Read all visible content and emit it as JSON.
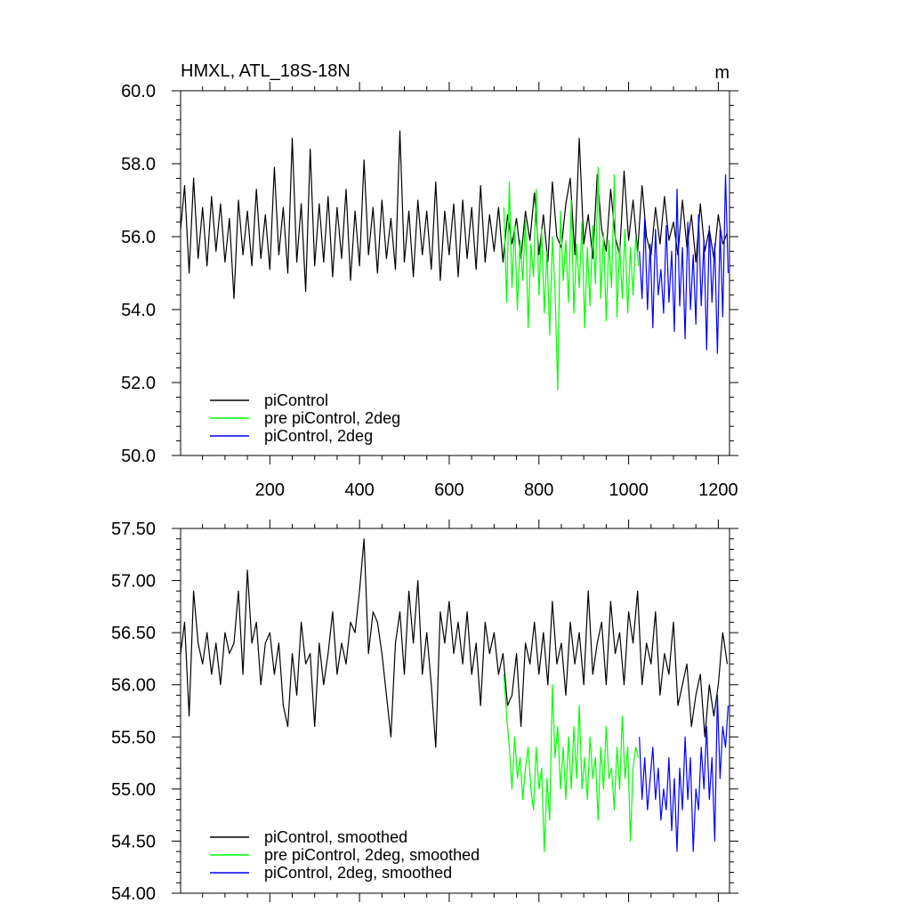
{
  "chart_data": [
    {
      "type": "line",
      "title": "HMXL, ATL_18S-18N",
      "units": "m",
      "xlim": [
        1,
        1225
      ],
      "ylim": [
        50,
        60
      ],
      "xticks": [
        200,
        400,
        600,
        800,
        1000,
        1200
      ],
      "xtick_labels": [
        "200",
        "400",
        "600",
        "800",
        "1000",
        "1200"
      ],
      "yticks": [
        50,
        52,
        54,
        56,
        58,
        60
      ],
      "ytick_labels": [
        "50.0",
        "52.0",
        "54.0",
        "56.0",
        "58.0",
        "60.0"
      ],
      "legend_position": "bottom-left",
      "series": [
        {
          "name": "piControl",
          "color": "#000000",
          "x": [
            1,
            10,
            20,
            30,
            40,
            50,
            60,
            70,
            80,
            90,
            100,
            110,
            120,
            130,
            140,
            150,
            160,
            170,
            180,
            190,
            200,
            210,
            220,
            230,
            240,
            250,
            260,
            270,
            280,
            290,
            300,
            310,
            320,
            330,
            340,
            350,
            360,
            370,
            380,
            390,
            400,
            410,
            420,
            430,
            440,
            450,
            460,
            470,
            480,
            490,
            500,
            510,
            520,
            530,
            540,
            550,
            560,
            570,
            580,
            590,
            600,
            610,
            620,
            630,
            640,
            650,
            660,
            670,
            680,
            690,
            700,
            710,
            720,
            730,
            740,
            750,
            760,
            770,
            780,
            790,
            800,
            810,
            820,
            830,
            840,
            850,
            860,
            870,
            880,
            890,
            900,
            910,
            920,
            930,
            940,
            950,
            960,
            970,
            980,
            990,
            1000,
            1010,
            1020,
            1030,
            1040,
            1050,
            1060,
            1070,
            1080,
            1090,
            1100,
            1110,
            1120,
            1130,
            1140,
            1150,
            1160,
            1170,
            1180,
            1190,
            1200,
            1210,
            1220
          ],
          "y": [
            56.2,
            57.4,
            55.0,
            57.6,
            55.4,
            56.8,
            55.2,
            57.1,
            55.6,
            56.9,
            55.3,
            56.5,
            54.3,
            57.0,
            55.5,
            56.7,
            55.2,
            57.3,
            55.4,
            56.6,
            55.1,
            57.9,
            55.5,
            56.8,
            55.0,
            58.7,
            55.3,
            56.9,
            54.5,
            58.4,
            55.2,
            56.9,
            55.3,
            57.1,
            54.9,
            56.8,
            55.4,
            57.3,
            54.8,
            56.7,
            55.2,
            58.1,
            55.5,
            56.8,
            55.0,
            57.0,
            55.4,
            56.5,
            55.1,
            58.9,
            55.3,
            56.7,
            54.9,
            57.0,
            55.5,
            56.7,
            55.1,
            57.5,
            54.8,
            56.7,
            55.5,
            56.9,
            54.9,
            57.0,
            55.4,
            56.8,
            55.1,
            57.4,
            55.3,
            56.6,
            55.6,
            56.8,
            55.3,
            56.6,
            55.8,
            56.5,
            55.4,
            56.7,
            55.9,
            57.2,
            55.5,
            56.6,
            55.3,
            57.5,
            56.0,
            55.7,
            56.9,
            57.6,
            55.5,
            58.7,
            55.8,
            56.6,
            55.4,
            57.7,
            56.2,
            55.6,
            57.3,
            56.0,
            55.5,
            57.8,
            55.9,
            57.0,
            55.6,
            57.4,
            56.0,
            55.5,
            56.8,
            55.8,
            57.1,
            55.9,
            56.4,
            55.5,
            57.0,
            55.7,
            56.6,
            55.3,
            56.9,
            55.6,
            56.2,
            55.4,
            56.6,
            55.8,
            56.1
          ]
        },
        {
          "name": "pre piControl, 2deg",
          "color": "#00ff00",
          "x": [
            722,
            728,
            734,
            740,
            746,
            752,
            758,
            764,
            770,
            776,
            782,
            788,
            794,
            800,
            806,
            812,
            818,
            824,
            830,
            836,
            842,
            848,
            854,
            860,
            866,
            872,
            878,
            884,
            890,
            896,
            902,
            908,
            914,
            920,
            926,
            932,
            938,
            944,
            950,
            956,
            962,
            968,
            974,
            980,
            986,
            992,
            998,
            1004,
            1010,
            1016,
            1022
          ],
          "y": [
            56.8,
            54.2,
            57.5,
            54.6,
            56.3,
            54.0,
            55.9,
            54.8,
            56.5,
            53.5,
            55.8,
            54.9,
            57.3,
            54.4,
            56.2,
            53.9,
            55.6,
            53.3,
            56.0,
            54.5,
            51.8,
            56.7,
            54.8,
            55.9,
            54.2,
            57.0,
            53.9,
            55.8,
            54.6,
            56.4,
            53.5,
            55.7,
            54.1,
            56.3,
            54.7,
            57.9,
            54.3,
            56.1,
            53.7,
            55.9,
            54.6,
            57.7,
            53.8,
            55.8,
            54.3,
            56.2,
            53.9,
            55.7,
            54.4,
            56.0,
            55.2
          ]
        },
        {
          "name": "piControl, 2deg",
          "color": "#0000ff",
          "x": [
            1024,
            1030,
            1036,
            1042,
            1048,
            1054,
            1060,
            1066,
            1072,
            1078,
            1084,
            1090,
            1096,
            1102,
            1108,
            1114,
            1120,
            1126,
            1132,
            1138,
            1144,
            1150,
            1156,
            1162,
            1168,
            1174,
            1180,
            1186,
            1192,
            1198,
            1204,
            1210,
            1216,
            1222
          ],
          "y": [
            55.6,
            54.3,
            56.5,
            54.0,
            55.8,
            53.5,
            56.2,
            54.4,
            55.1,
            53.9,
            56.3,
            54.2,
            55.6,
            53.4,
            57.3,
            54.1,
            55.7,
            53.2,
            56.4,
            54.0,
            55.5,
            53.6,
            56.6,
            54.1,
            55.9,
            52.9,
            56.3,
            54.2,
            55.8,
            52.8,
            56.2,
            53.8,
            57.7,
            55.0
          ]
        }
      ]
    },
    {
      "type": "line",
      "xlim": [
        1,
        1225
      ],
      "ylim": [
        54.0,
        57.5
      ],
      "xticks": [
        200,
        400,
        600,
        800,
        1000,
        1200
      ],
      "yticks": [
        54.0,
        54.5,
        55.0,
        55.5,
        56.0,
        56.5,
        57.0,
        57.5
      ],
      "ytick_labels": [
        "54.00",
        "54.50",
        "55.00",
        "55.50",
        "56.00",
        "56.50",
        "57.00",
        "57.50"
      ],
      "legend_position": "bottom-left",
      "series": [
        {
          "name": "piControl, smoothed",
          "color": "#000000",
          "x": [
            1,
            10,
            20,
            30,
            40,
            50,
            60,
            70,
            80,
            90,
            100,
            110,
            120,
            130,
            140,
            150,
            160,
            170,
            180,
            190,
            200,
            210,
            220,
            230,
            240,
            250,
            260,
            270,
            280,
            290,
            300,
            310,
            320,
            330,
            340,
            350,
            360,
            370,
            380,
            390,
            400,
            410,
            420,
            430,
            440,
            450,
            460,
            470,
            480,
            490,
            500,
            510,
            520,
            530,
            540,
            550,
            560,
            570,
            580,
            590,
            600,
            610,
            620,
            630,
            640,
            650,
            660,
            670,
            680,
            690,
            700,
            710,
            720,
            730,
            740,
            750,
            760,
            770,
            780,
            790,
            800,
            810,
            820,
            830,
            840,
            850,
            860,
            870,
            880,
            890,
            900,
            910,
            920,
            930,
            940,
            950,
            960,
            970,
            980,
            990,
            1000,
            1010,
            1020,
            1030,
            1040,
            1050,
            1060,
            1070,
            1080,
            1090,
            1100,
            1110,
            1120,
            1130,
            1140,
            1150,
            1160,
            1170,
            1180,
            1190,
            1200,
            1210,
            1220
          ],
          "y": [
            56.3,
            56.6,
            55.7,
            56.9,
            56.4,
            56.2,
            56.5,
            56.1,
            56.4,
            56.0,
            56.5,
            56.3,
            56.4,
            56.9,
            56.1,
            57.1,
            56.4,
            56.6,
            56.0,
            56.4,
            56.5,
            56.1,
            56.4,
            55.8,
            55.6,
            56.3,
            55.9,
            56.6,
            56.2,
            56.3,
            55.6,
            56.4,
            56.0,
            56.3,
            56.7,
            56.1,
            56.4,
            56.2,
            56.6,
            56.5,
            56.9,
            57.4,
            56.3,
            56.7,
            56.6,
            56.3,
            55.9,
            55.5,
            56.4,
            56.7,
            56.1,
            56.9,
            56.4,
            57.0,
            56.1,
            56.5,
            56.0,
            55.4,
            56.7,
            56.4,
            56.8,
            56.3,
            56.6,
            56.2,
            56.7,
            56.1,
            56.4,
            55.8,
            56.6,
            56.3,
            56.5,
            56.1,
            56.3,
            55.8,
            55.9,
            56.3,
            55.6,
            56.4,
            56.2,
            56.6,
            56.1,
            56.5,
            56.0,
            56.8,
            56.2,
            56.4,
            55.9,
            56.6,
            56.2,
            56.5,
            56.0,
            56.9,
            56.1,
            56.4,
            56.6,
            56.0,
            56.8,
            56.3,
            56.5,
            56.0,
            56.7,
            56.4,
            56.9,
            56.0,
            56.4,
            56.2,
            56.7,
            55.9,
            56.3,
            56.1,
            56.6,
            55.8,
            56.0,
            56.2,
            55.6,
            55.9,
            56.1,
            55.5,
            56.0,
            55.7,
            56.0,
            56.5,
            56.2
          ]
        },
        {
          "name": "pre piControl, 2deg, smoothed",
          "color": "#00ff00",
          "x": [
            722,
            728,
            734,
            740,
            746,
            752,
            758,
            764,
            770,
            776,
            782,
            788,
            794,
            800,
            806,
            812,
            818,
            824,
            830,
            836,
            842,
            848,
            854,
            860,
            866,
            872,
            878,
            884,
            890,
            896,
            902,
            908,
            914,
            920,
            926,
            932,
            938,
            944,
            950,
            956,
            962,
            968,
            974,
            980,
            986,
            992,
            998,
            1004,
            1010,
            1016,
            1022
          ],
          "y": [
            56.1,
            55.7,
            55.4,
            55.0,
            55.5,
            55.1,
            55.3,
            54.9,
            55.2,
            55.4,
            55.0,
            54.8,
            55.4,
            55.0,
            55.2,
            54.4,
            55.1,
            54.7,
            56.0,
            55.3,
            55.6,
            55.0,
            55.4,
            54.9,
            55.5,
            55.0,
            55.6,
            55.1,
            55.8,
            55.0,
            55.3,
            54.9,
            55.5,
            55.1,
            55.3,
            54.7,
            55.4,
            55.0,
            55.6,
            55.1,
            55.2,
            54.8,
            55.4,
            55.0,
            55.7,
            55.1,
            55.4,
            54.5,
            55.2,
            55.4,
            55.3
          ]
        },
        {
          "name": "piControl, 2deg, smoothed",
          "color": "#0000ff",
          "x": [
            1024,
            1030,
            1036,
            1042,
            1048,
            1054,
            1060,
            1066,
            1072,
            1078,
            1084,
            1090,
            1096,
            1102,
            1108,
            1114,
            1120,
            1126,
            1132,
            1138,
            1144,
            1150,
            1156,
            1162,
            1168,
            1174,
            1180,
            1186,
            1192,
            1198,
            1204,
            1210,
            1216,
            1222
          ],
          "y": [
            55.5,
            54.9,
            55.3,
            54.8,
            55.1,
            55.4,
            54.9,
            55.2,
            54.7,
            55.0,
            54.8,
            55.3,
            54.6,
            55.1,
            54.4,
            55.2,
            54.8,
            55.5,
            54.9,
            55.3,
            54.4,
            55.0,
            54.8,
            55.4,
            55.0,
            55.6,
            54.9,
            55.3,
            54.5,
            55.9,
            55.1,
            55.6,
            55.4,
            55.8
          ]
        }
      ]
    }
  ]
}
